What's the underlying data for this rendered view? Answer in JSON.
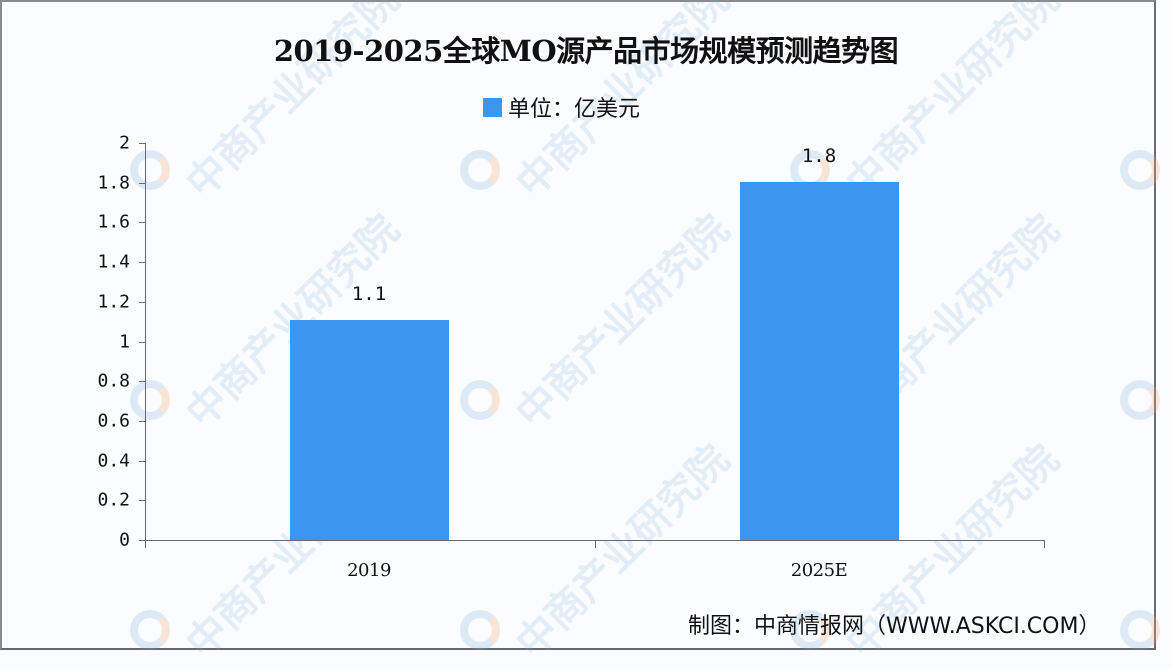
{
  "title": "2019-2025全球MO源产品市场规模预测趋势图",
  "legend": {
    "label": "单位：亿美元",
    "color": "#3a96ee"
  },
  "source": "制图：中商情报网（WWW.ASKCI.COM）",
  "watermark": "中商产业研究院",
  "y_ticks": [
    "0",
    "0.2",
    "0.4",
    "0.6",
    "0.8",
    "1",
    "1.2",
    "1.4",
    "1.6",
    "1.8",
    "2"
  ],
  "bars": [
    {
      "category": "2019",
      "value_label": "1.1"
    },
    {
      "category": "2025E",
      "value_label": "1.8"
    }
  ],
  "chart_data": {
    "type": "bar",
    "title": "2019-2025全球MO源产品市场规模预测趋势图",
    "categories": [
      "2019",
      "2025E"
    ],
    "series": [
      {
        "name": "单位：亿美元",
        "values": [
          1.1,
          1.8
        ],
        "color": "#3a96ee"
      }
    ],
    "xlabel": "",
    "ylabel": "",
    "ylim": [
      0,
      2
    ],
    "y_ticks": [
      0,
      0.2,
      0.4,
      0.6,
      0.8,
      1,
      1.2,
      1.4,
      1.6,
      1.8,
      2
    ],
    "data_labels": [
      "1.1",
      "1.8"
    ],
    "grid": false,
    "legend_position": "top-center",
    "source": "制图：中商情报网（WWW.ASKCI.COM）"
  }
}
